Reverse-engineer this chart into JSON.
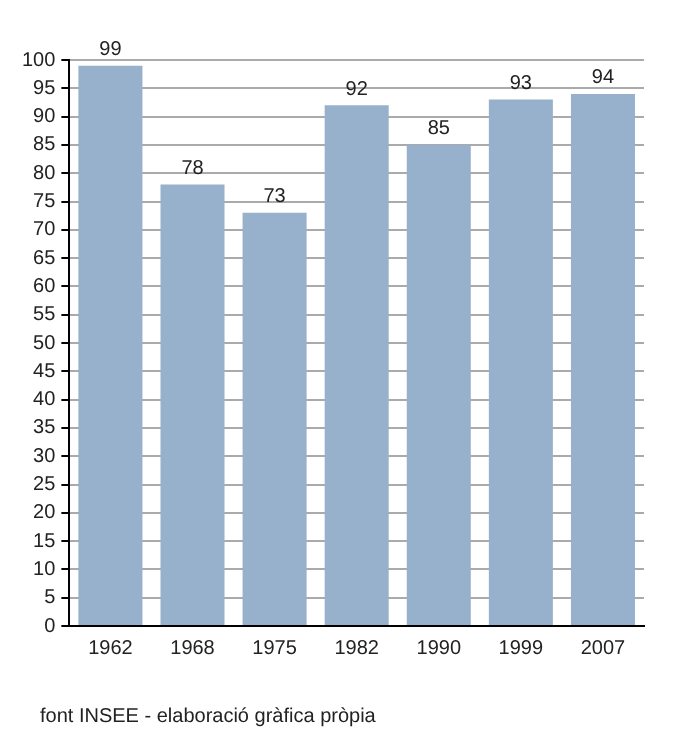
{
  "chart_data": {
    "type": "bar",
    "categories": [
      "1962",
      "1968",
      "1975",
      "1982",
      "1990",
      "1999",
      "2007"
    ],
    "values": [
      99,
      78,
      73,
      92,
      85,
      93,
      94
    ],
    "color": "#97b0cb",
    "ylim": [
      0,
      100
    ],
    "yticks": [
      0,
      5,
      10,
      15,
      20,
      25,
      30,
      35,
      40,
      45,
      50,
      55,
      60,
      65,
      70,
      75,
      80,
      85,
      90,
      95,
      100
    ],
    "grid": "y",
    "data_labels": true,
    "legend": false,
    "annotations": [
      "font INSEE - elaboració gràfica pròpia"
    ]
  }
}
